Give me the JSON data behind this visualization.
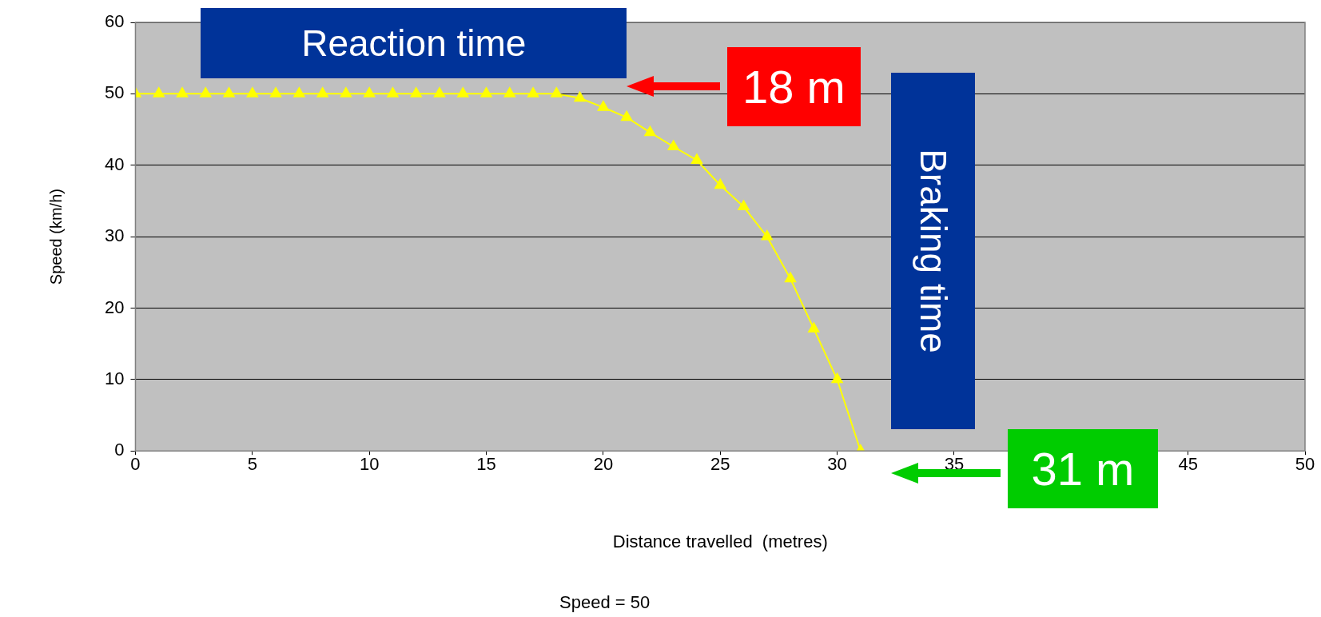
{
  "chart_data": {
    "type": "line",
    "xlabel": "Distance travelled  (metres)",
    "ylabel": "Speed (km/h)",
    "x": [
      0,
      1,
      2,
      3,
      4,
      5,
      6,
      7,
      8,
      9,
      10,
      11,
      12,
      13,
      14,
      15,
      16,
      17,
      18,
      19,
      20,
      21,
      22,
      23,
      24,
      25,
      26,
      27,
      28,
      29,
      30,
      31
    ],
    "series": [
      {
        "color": "#ffff00",
        "values": [
          50,
          50,
          50,
          50,
          50,
          50,
          50,
          50,
          50,
          50,
          50,
          50,
          50,
          50,
          50,
          50,
          50,
          50,
          50,
          49.4,
          48.1,
          46.7,
          44.6,
          42.6,
          40.7,
          37.2,
          34.2,
          30,
          24.1,
          17.1,
          10,
          0
        ]
      }
    ],
    "xlim": [
      0,
      50
    ],
    "xticks": [
      0,
      5,
      10,
      15,
      20,
      25,
      30,
      35,
      {
        "value": 40,
        "label": null
      },
      45,
      50
    ],
    "ylim": [
      0,
      60
    ],
    "yticks": [
      0,
      10,
      20,
      30,
      40,
      50,
      60
    ],
    "grid": "y",
    "legend": false,
    "marker": "triangle",
    "line_style": "solid",
    "annotations": [
      "Reaction time",
      "18 m",
      "Braking time",
      "31 m",
      "Speed = 50"
    ]
  }
}
